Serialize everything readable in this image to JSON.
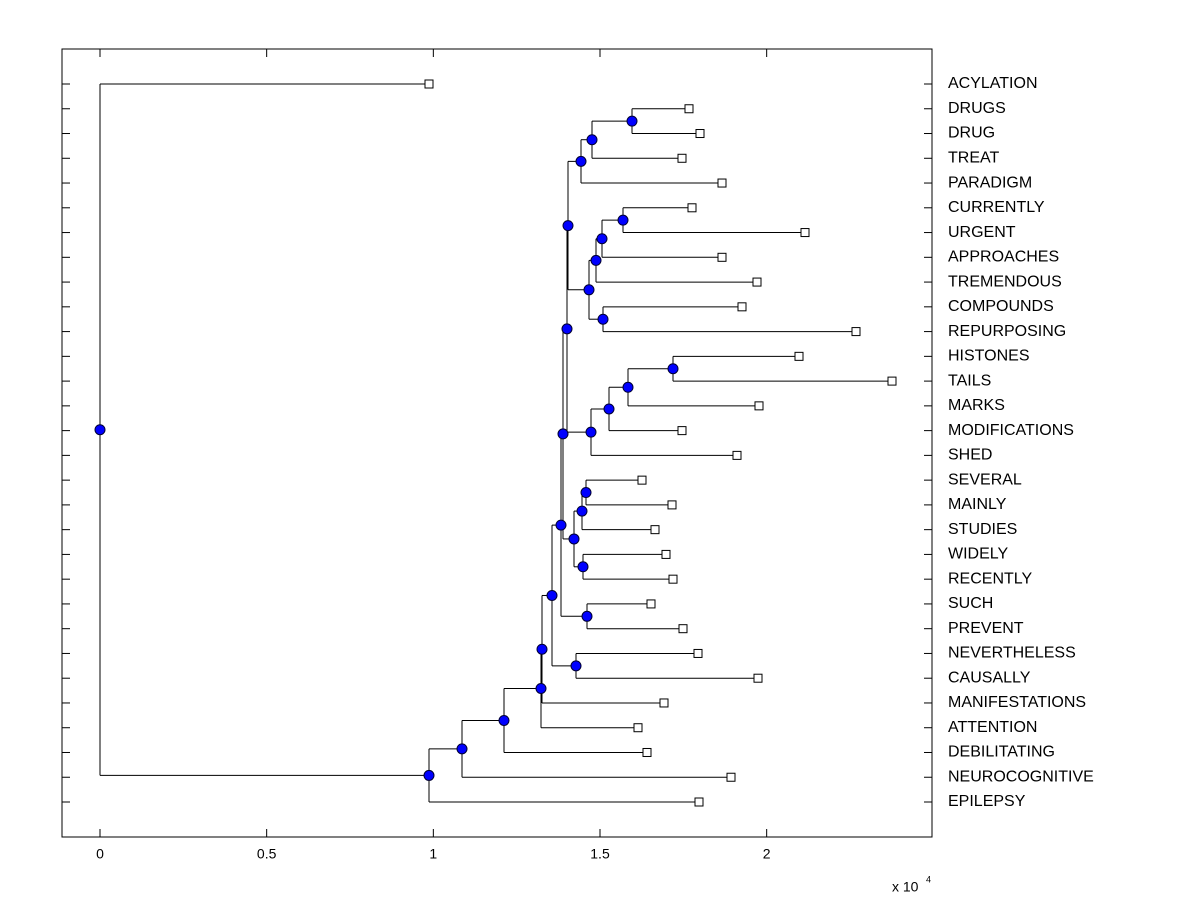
{
  "chart_data": {
    "type": "dendrogram",
    "categories": [
      "ACYLATION",
      "DRUGS",
      "DRUG",
      "TREAT",
      "PARADIGM",
      "CURRENTLY",
      "URGENT",
      "APPROACHES",
      "TREMENDOUS",
      "COMPOUNDS",
      "REPURPOSING",
      "HISTONES",
      "TAILS",
      "MARKS",
      "MODIFICATIONS",
      "SHED",
      "SEVERAL",
      "MAINLY",
      "STUDIES",
      "WIDELY",
      "RECENTLY",
      "SUCH",
      "PREVENT",
      "NEVERTHELESS",
      "CAUSALLY",
      "MANIFESTATIONS",
      "ATTENTION",
      "DEBILITATING",
      "NEUROCOGNITIVE",
      "EPILEPSY"
    ],
    "values": [
      0.987,
      1.767,
      1.8,
      1.746,
      1.866,
      1.776,
      2.115,
      1.866,
      1.971,
      1.926,
      2.268,
      2.097,
      2.376,
      1.977,
      1.746,
      1.911,
      1.626,
      1.716,
      1.665,
      1.698,
      1.719,
      1.653,
      1.749,
      1.794,
      1.974,
      1.692,
      1.614,
      1.641,
      1.893,
      1.797
    ],
    "nodes": [
      {
        "value": 1.596,
        "children": [
          {
            "leaf": 1
          },
          {
            "leaf": 2
          }
        ]
      },
      {
        "value": 1.476,
        "children": [
          {
            "node": 0
          },
          {
            "leaf": 3
          }
        ]
      },
      {
        "value": 1.443,
        "children": [
          {
            "node": 1
          },
          {
            "leaf": 4
          }
        ]
      },
      {
        "value": 1.569,
        "children": [
          {
            "leaf": 5
          },
          {
            "leaf": 6
          }
        ]
      },
      {
        "value": 1.506,
        "children": [
          {
            "node": 3
          },
          {
            "leaf": 7
          }
        ]
      },
      {
        "value": 1.488,
        "children": [
          {
            "node": 4
          },
          {
            "leaf": 8
          }
        ]
      },
      {
        "value": 1.509,
        "children": [
          {
            "leaf": 9
          },
          {
            "leaf": 10
          }
        ]
      },
      {
        "value": 1.467,
        "children": [
          {
            "node": 5
          },
          {
            "node": 6
          }
        ]
      },
      {
        "value": 1.404,
        "children": [
          {
            "node": 2
          },
          {
            "node": 7
          }
        ]
      },
      {
        "value": 1.719,
        "children": [
          {
            "leaf": 11
          },
          {
            "leaf": 12
          }
        ]
      },
      {
        "value": 1.584,
        "children": [
          {
            "node": 9
          },
          {
            "leaf": 13
          }
        ]
      },
      {
        "value": 1.527,
        "children": [
          {
            "node": 10
          },
          {
            "leaf": 14
          }
        ]
      },
      {
        "value": 1.473,
        "children": [
          {
            "node": 11
          },
          {
            "leaf": 15
          }
        ]
      },
      {
        "value": 1.401,
        "children": [
          {
            "node": 8
          },
          {
            "node": 12
          }
        ]
      },
      {
        "value": 1.458,
        "children": [
          {
            "leaf": 16
          },
          {
            "leaf": 17
          }
        ]
      },
      {
        "value": 1.446,
        "children": [
          {
            "node": 14
          },
          {
            "leaf": 18
          }
        ]
      },
      {
        "value": 1.449,
        "children": [
          {
            "leaf": 19
          },
          {
            "leaf": 20
          }
        ]
      },
      {
        "value": 1.422,
        "children": [
          {
            "node": 15
          },
          {
            "node": 16
          }
        ]
      },
      {
        "value": 1.389,
        "children": [
          {
            "node": 13
          },
          {
            "node": 17
          }
        ]
      },
      {
        "value": 1.461,
        "children": [
          {
            "leaf": 21
          },
          {
            "leaf": 22
          }
        ]
      },
      {
        "value": 1.383,
        "children": [
          {
            "node": 18
          },
          {
            "node": 19
          }
        ]
      },
      {
        "value": 1.428,
        "children": [
          {
            "leaf": 23
          },
          {
            "leaf": 24
          }
        ]
      },
      {
        "value": 1.356,
        "children": [
          {
            "node": 20
          },
          {
            "node": 21
          }
        ]
      },
      {
        "value": 1.326,
        "children": [
          {
            "node": 22
          },
          {
            "leaf": 25
          }
        ]
      },
      {
        "value": 1.323,
        "children": [
          {
            "node": 23
          },
          {
            "leaf": 26
          }
        ]
      },
      {
        "value": 1.212,
        "children": [
          {
            "node": 24
          },
          {
            "leaf": 27
          }
        ]
      },
      {
        "value": 1.086,
        "children": [
          {
            "node": 25
          },
          {
            "leaf": 28
          }
        ]
      },
      {
        "value": 0.987,
        "children": [
          {
            "node": 26
          },
          {
            "leaf": 29
          }
        ]
      },
      {
        "value": 0,
        "children": [
          {
            "leaf": 0
          },
          {
            "node": 27
          }
        ]
      }
    ],
    "root": 28,
    "xlim": [
      -0.114,
      2.496
    ],
    "xticks": [
      0,
      0.5,
      1,
      1.5,
      2
    ],
    "x_scale_label": {
      "base": "x 10",
      "exponent": "4"
    },
    "node_color": "#0000ff",
    "leaf_color": "#ffffff"
  }
}
